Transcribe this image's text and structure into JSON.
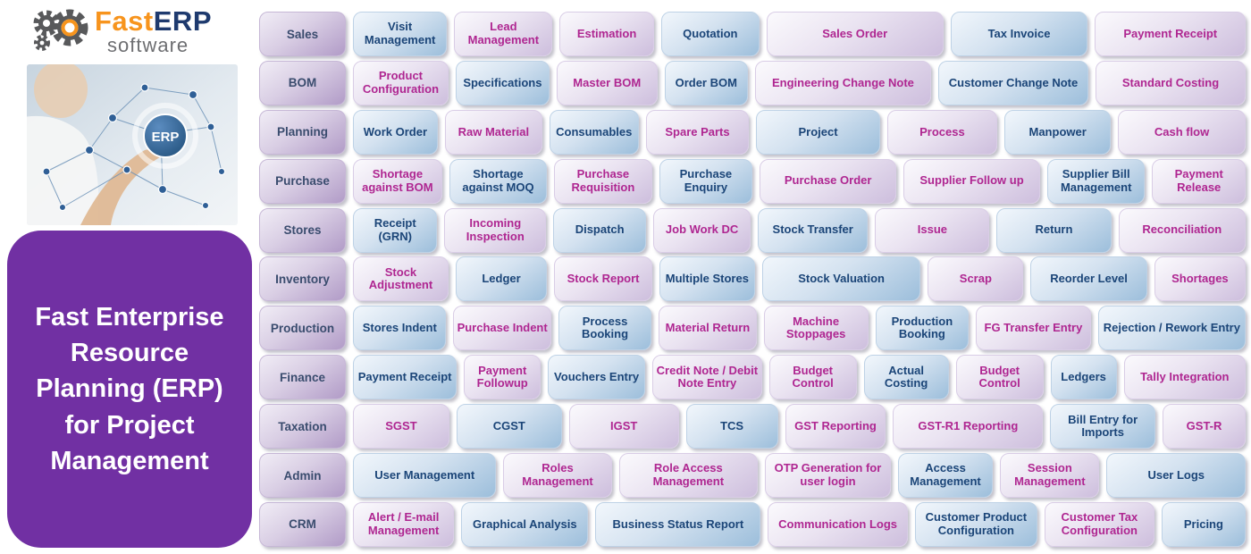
{
  "logo": {
    "fast": "Fast",
    "erp": "ERP",
    "software": "software"
  },
  "hero": {
    "erp_label": "ERP"
  },
  "banner": {
    "text": "Fast Enterprise Resource Planning (ERP) for Project Management"
  },
  "colors": {
    "banner_purple": "#7130a3",
    "brand_orange": "#f7941d",
    "brand_navy": "#1e3a6e",
    "module_blue_text": "#1b4578",
    "module_magenta_text": "#af2691"
  },
  "rows": [
    {
      "label": "Sales",
      "modules": [
        {
          "label": "Visit Management",
          "style": "b",
          "w": 1
        },
        {
          "label": "Lead Management",
          "style": "p",
          "w": 1.05
        },
        {
          "label": "Estimation",
          "style": "p",
          "w": 1
        },
        {
          "label": "Quotation",
          "style": "b",
          "w": 1.05
        },
        {
          "label": "Sales Order",
          "style": "p",
          "w": 1.95
        },
        {
          "label": "Tax Invoice",
          "style": "b",
          "w": 1.5
        },
        {
          "label": "Payment Receipt",
          "style": "p",
          "w": 1.65
        }
      ]
    },
    {
      "label": "BOM",
      "modules": [
        {
          "label": "Product Configuration",
          "style": "p",
          "w": 1.02
        },
        {
          "label": "Specifications",
          "style": "b",
          "w": 1
        },
        {
          "label": "Master BOM",
          "style": "p",
          "w": 1.08
        },
        {
          "label": "Order BOM",
          "style": "b",
          "w": 0.88
        },
        {
          "label": "Engineering Change Note",
          "style": "p",
          "w": 1.95
        },
        {
          "label": "Customer Change Note",
          "style": "b",
          "w": 1.65
        },
        {
          "label": "Standard Costing",
          "style": "p",
          "w": 1.65
        }
      ]
    },
    {
      "label": "Planning",
      "modules": [
        {
          "label": "Work Order",
          "style": "b",
          "w": 0.9
        },
        {
          "label": "Raw Material",
          "style": "p",
          "w": 1.05
        },
        {
          "label": "Consumables",
          "style": "b",
          "w": 0.95
        },
        {
          "label": "Spare Parts",
          "style": "p",
          "w": 1.12
        },
        {
          "label": "Project",
          "style": "b",
          "w": 1.35
        },
        {
          "label": "Process",
          "style": "p",
          "w": 1.2
        },
        {
          "label": "Manpower",
          "style": "b",
          "w": 1.15
        },
        {
          "label": "Cash flow",
          "style": "p",
          "w": 1.4
        }
      ]
    },
    {
      "label": "Purchase",
      "modules": [
        {
          "label": "Shortage against BOM",
          "style": "p",
          "w": 0.95
        },
        {
          "label": "Shortage against MOQ",
          "style": "b",
          "w": 1.05
        },
        {
          "label": "Purchase Requisition",
          "style": "p",
          "w": 1.05
        },
        {
          "label": "Purchase Enquiry",
          "style": "b",
          "w": 1
        },
        {
          "label": "Purchase Order",
          "style": "p",
          "w": 1.5
        },
        {
          "label": "Supplier Follow up",
          "style": "p",
          "w": 1.5
        },
        {
          "label": "Supplier Bill Management",
          "style": "b",
          "w": 1.05
        },
        {
          "label": "Payment Release",
          "style": "p",
          "w": 1
        }
      ]
    },
    {
      "label": "Stores",
      "modules": [
        {
          "label": "Receipt (GRN)",
          "style": "b",
          "w": 0.9
        },
        {
          "label": "Incoming Inspection",
          "style": "p",
          "w": 1.1
        },
        {
          "label": "Dispatch",
          "style": "b",
          "w": 1
        },
        {
          "label": "Job Work DC",
          "style": "p",
          "w": 1.05
        },
        {
          "label": "Stock Transfer",
          "style": "b",
          "w": 1.2
        },
        {
          "label": "Issue",
          "style": "p",
          "w": 1.25
        },
        {
          "label": "Return",
          "style": "b",
          "w": 1.25
        },
        {
          "label": "Reconciliation",
          "style": "p",
          "w": 1.4
        }
      ]
    },
    {
      "label": "Inventory",
      "modules": [
        {
          "label": "Stock Adjustment",
          "style": "p",
          "w": 1.05
        },
        {
          "label": "Ledger",
          "style": "b",
          "w": 1
        },
        {
          "label": "Stock Report",
          "style": "p",
          "w": 1.08
        },
        {
          "label": "Multiple Stores",
          "style": "b",
          "w": 1.05
        },
        {
          "label": "Stock Valuation",
          "style": "b",
          "w": 1.8
        },
        {
          "label": "Scrap",
          "style": "p",
          "w": 1.05
        },
        {
          "label": "Reorder Level",
          "style": "b",
          "w": 1.3
        },
        {
          "label": "Shortages",
          "style": "p",
          "w": 1
        }
      ]
    },
    {
      "label": "Production",
      "modules": [
        {
          "label": "Stores Indent",
          "style": "b",
          "w": 1
        },
        {
          "label": "Purchase Indent",
          "style": "p",
          "w": 1.05
        },
        {
          "label": "Process Booking",
          "style": "b",
          "w": 1
        },
        {
          "label": "Material Return",
          "style": "p",
          "w": 1.05
        },
        {
          "label": "Machine Stoppages",
          "style": "p",
          "w": 1.13
        },
        {
          "label": "Production Booking",
          "style": "b",
          "w": 1
        },
        {
          "label": "FG Transfer Entry",
          "style": "p",
          "w": 1.25
        },
        {
          "label": "Rejection / Rework Entry",
          "style": "b",
          "w": 1.63
        }
      ]
    },
    {
      "label": "Finance",
      "modules": [
        {
          "label": "Payment Receipt",
          "style": "b",
          "w": 1.18
        },
        {
          "label": "Payment Followup",
          "style": "p",
          "w": 0.85
        },
        {
          "label": "Vouchers Entry",
          "style": "b",
          "w": 1.1
        },
        {
          "label": "Credit Note / Debit Note Entry",
          "style": "p",
          "w": 1.25
        },
        {
          "label": "Budget Control",
          "style": "p",
          "w": 0.98
        },
        {
          "label": "Actual Costing",
          "style": "b",
          "w": 0.95
        },
        {
          "label": "Budget Control",
          "style": "p",
          "w": 0.98
        },
        {
          "label": "Ledgers",
          "style": "b",
          "w": 0.72
        },
        {
          "label": "Tally Integration",
          "style": "p",
          "w": 1.4
        }
      ]
    },
    {
      "label": "Taxation",
      "modules": [
        {
          "label": "SGST",
          "style": "p",
          "w": 1
        },
        {
          "label": "CGST",
          "style": "b",
          "w": 1.1
        },
        {
          "label": "IGST",
          "style": "p",
          "w": 1.15
        },
        {
          "label": "TCS",
          "style": "b",
          "w": 0.95
        },
        {
          "label": "GST Reporting",
          "style": "p",
          "w": 1.05
        },
        {
          "label": "GST-R1 Reporting",
          "style": "p",
          "w": 1.6
        },
        {
          "label": "Bill Entry for Imports",
          "style": "b",
          "w": 1.1
        },
        {
          "label": "GST-R",
          "style": "p",
          "w": 0.85
        }
      ]
    },
    {
      "label": "Admin",
      "modules": [
        {
          "label": "User Management",
          "style": "b",
          "w": 1.55
        },
        {
          "label": "Roles Management",
          "style": "p",
          "w": 1.15
        },
        {
          "label": "Role Access Management",
          "style": "p",
          "w": 1.5
        },
        {
          "label": "OTP Generation for user login",
          "style": "p",
          "w": 1.35
        },
        {
          "label": "Access Management",
          "style": "b",
          "w": 1
        },
        {
          "label": "Session Management",
          "style": "p",
          "w": 1.05
        },
        {
          "label": "User Logs",
          "style": "b",
          "w": 1.5
        }
      ]
    },
    {
      "label": "CRM",
      "modules": [
        {
          "label": "Alert / E-mail Management",
          "style": "p",
          "w": 1.1
        },
        {
          "label": "Graphical Analysis",
          "style": "b",
          "w": 1.4
        },
        {
          "label": "Business Status Report",
          "style": "b",
          "w": 1.85
        },
        {
          "label": "Communication Logs",
          "style": "p",
          "w": 1.55
        },
        {
          "label": "Customer Product Configuration",
          "style": "b",
          "w": 1.35
        },
        {
          "label": "Customer Tax Configuration",
          "style": "p",
          "w": 1.2
        },
        {
          "label": "Pricing",
          "style": "b",
          "w": 0.9
        }
      ]
    }
  ]
}
